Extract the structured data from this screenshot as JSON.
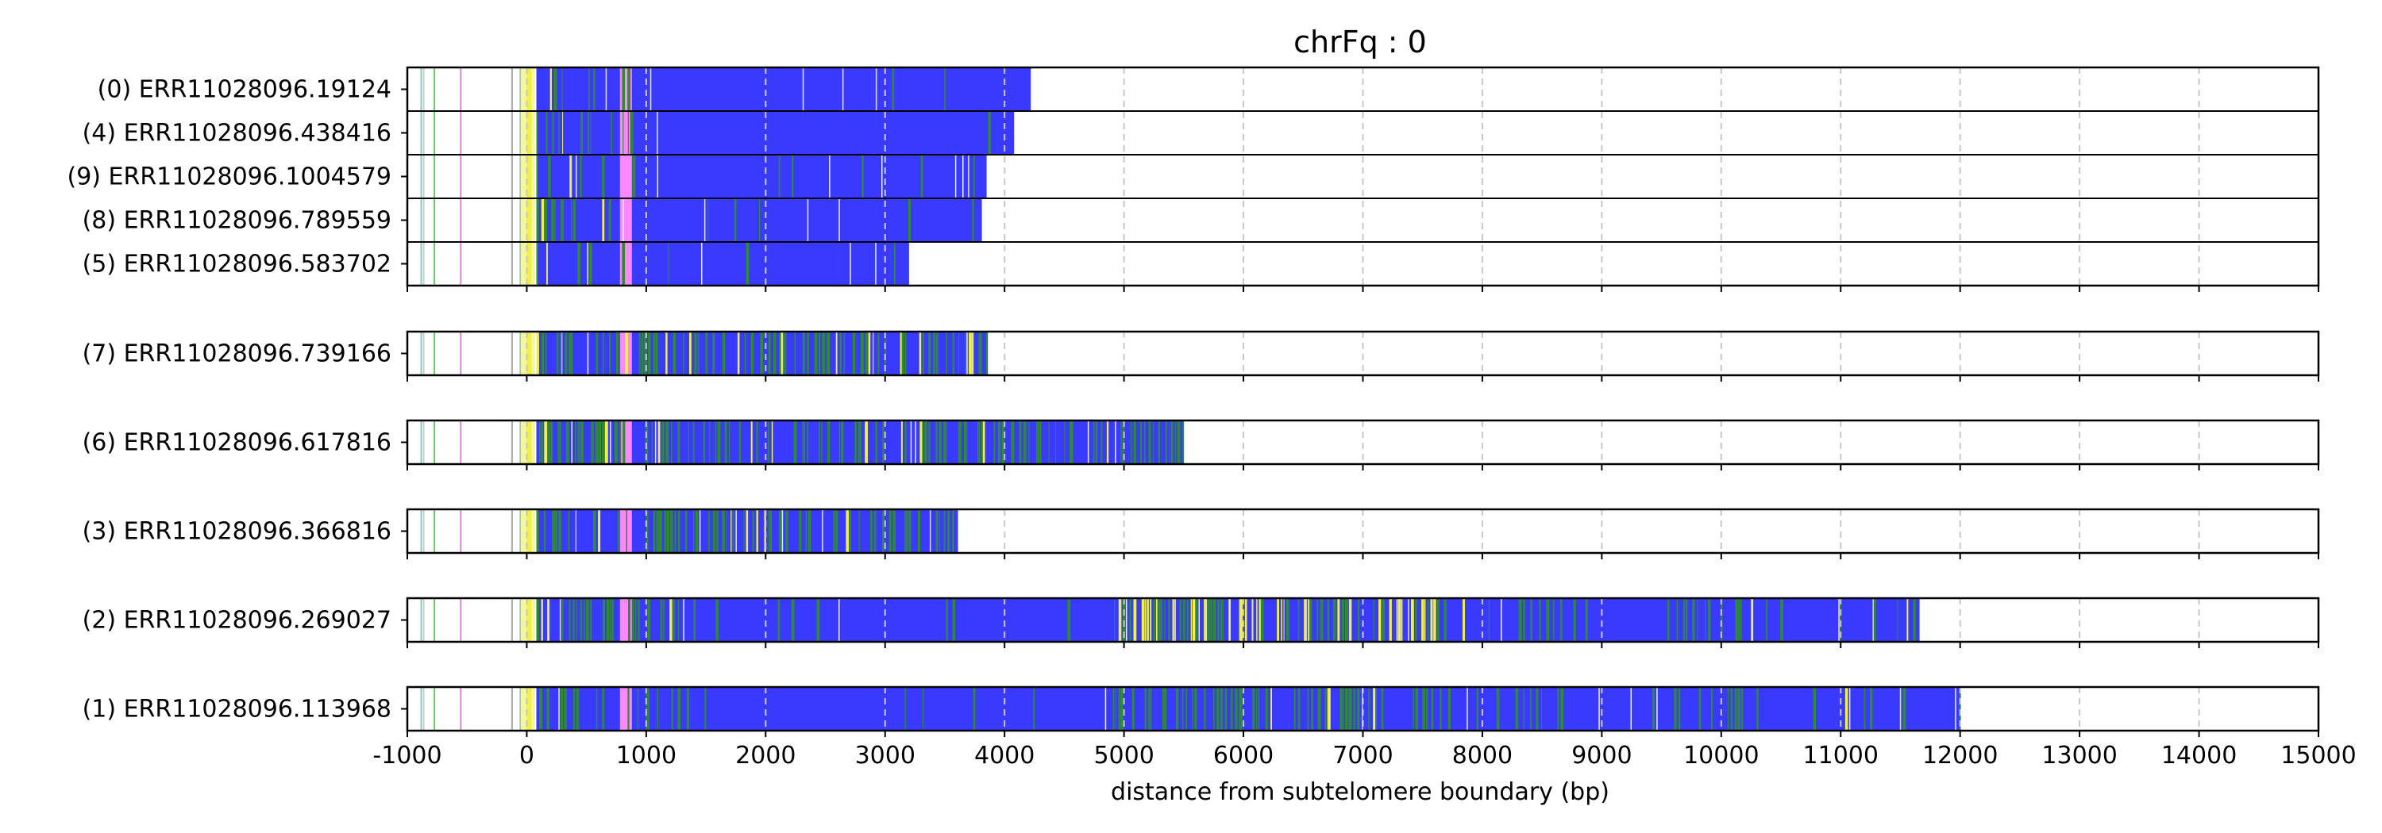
{
  "chart_data": {
    "type": "bar",
    "title": "chrFq : 0",
    "xlabel": "distance from subtelomere boundary (bp)",
    "ylabel": "",
    "xlim": [
      -1000,
      15000
    ],
    "xticks": [
      -1000,
      0,
      1000,
      2000,
      3000,
      4000,
      5000,
      6000,
      7000,
      8000,
      9000,
      10000,
      11000,
      12000,
      13000,
      14000,
      15000
    ],
    "xtick_labels": [
      "-1000",
      "0",
      "1000",
      "2000",
      "3000",
      "4000",
      "5000",
      "6000",
      "7000",
      "8000",
      "9000",
      "10000",
      "11000",
      "12000",
      "13000",
      "14000",
      "15000"
    ],
    "grid": "vertical dashed",
    "colors": {
      "blue": "#3a3aff",
      "green": "#2e8b2e",
      "yellow": "#f0f04a",
      "pink": "#ff88ff",
      "white": "#ffffff",
      "frame": "#000000",
      "grid": "#c8c8c8"
    },
    "groups": [
      {
        "rows": [
          {
            "label": "(0) ERR11028096.19124",
            "end": 4220,
            "pattern": "blue"
          },
          {
            "label": "(4) ERR11028096.438416",
            "end": 4080,
            "pattern": "blue"
          },
          {
            "label": "(9) ERR11028096.1004579",
            "end": 3850,
            "pattern": "blue"
          },
          {
            "label": "(8) ERR11028096.789559",
            "end": 3810,
            "pattern": "blue"
          },
          {
            "label": "(5) ERR11028096.583702",
            "end": 3200,
            "pattern": "blue"
          }
        ]
      },
      {
        "rows": [
          {
            "label": "(7) ERR11028096.739166",
            "end": 3860,
            "pattern": "mixed"
          }
        ]
      },
      {
        "rows": [
          {
            "label": "(6) ERR11028096.617816",
            "end": 5500,
            "pattern": "mixed"
          }
        ]
      },
      {
        "rows": [
          {
            "label": "(3) ERR11028096.366816",
            "end": 3610,
            "pattern": "mixed"
          }
        ]
      },
      {
        "rows": [
          {
            "label": "(2) ERR11028096.269027",
            "end": 11660,
            "pattern": "long"
          }
        ]
      },
      {
        "rows": [
          {
            "label": "(1) ERR11028096.113968",
            "end": 12000,
            "pattern": "long"
          }
        ]
      }
    ]
  }
}
